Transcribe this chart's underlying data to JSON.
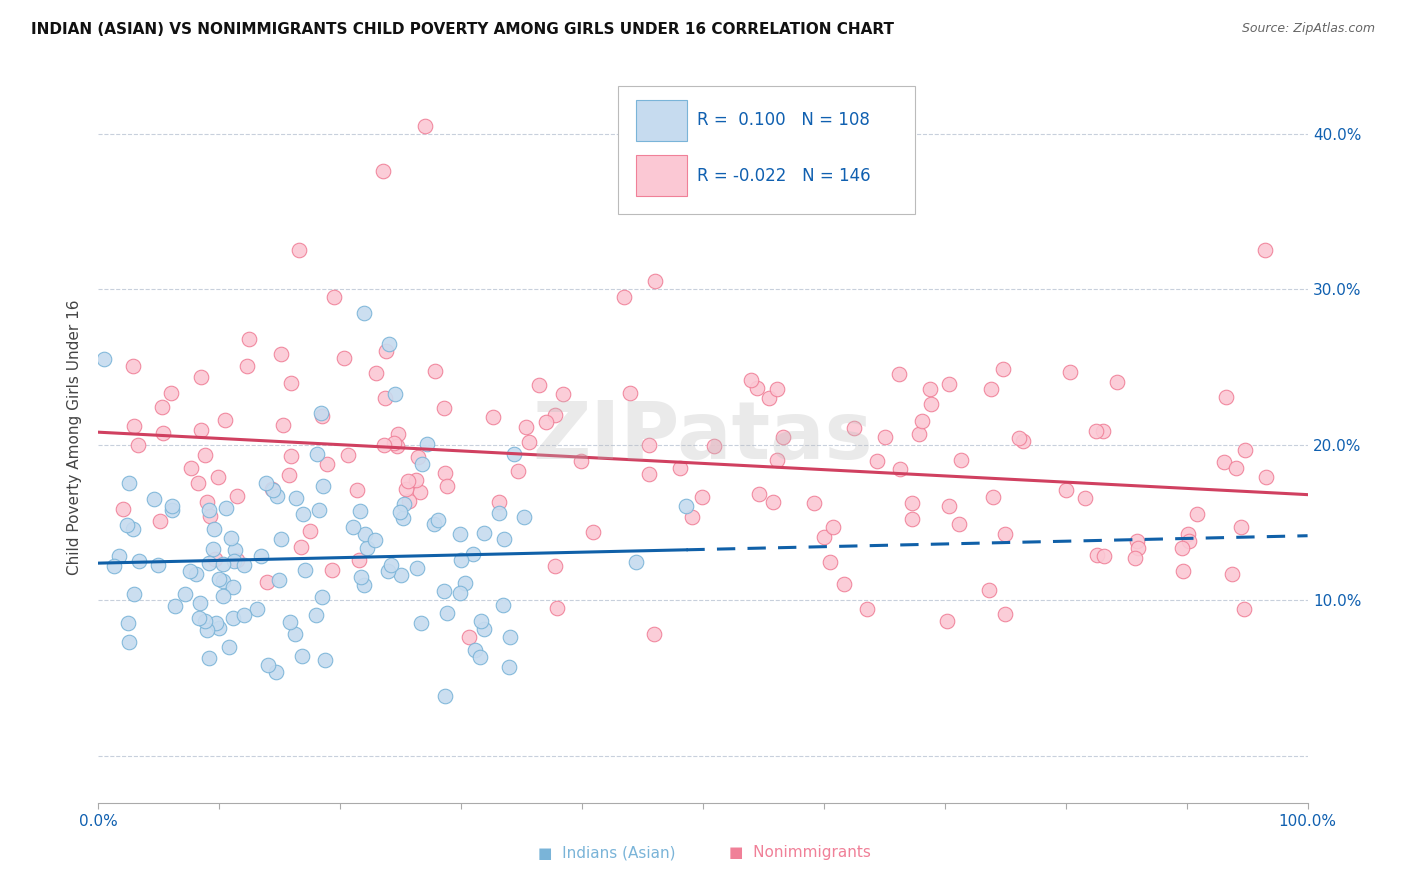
{
  "title": "INDIAN (ASIAN) VS NONIMMIGRANTS CHILD POVERTY AMONG GIRLS UNDER 16 CORRELATION CHART",
  "source": "Source: ZipAtlas.com",
  "ylabel": "Child Poverty Among Girls Under 16",
  "xlim": [
    0,
    1.0
  ],
  "ylim": [
    -0.03,
    0.44
  ],
  "x_ticks": [
    0.0,
    0.1,
    0.2,
    0.3,
    0.4,
    0.5,
    0.6,
    0.7,
    0.8,
    0.9,
    1.0
  ],
  "x_tick_labels": [
    "0.0%",
    "",
    "",
    "",
    "",
    "",
    "",
    "",
    "",
    "",
    "100.0%"
  ],
  "y_ticks": [
    0.0,
    0.1,
    0.2,
    0.3,
    0.4
  ],
  "y_tick_labels": [
    "",
    "10.0%",
    "20.0%",
    "30.0%",
    "40.0%"
  ],
  "blue_edge": "#7ab4d8",
  "blue_fill": "#c6dbef",
  "pink_edge": "#f08098",
  "pink_fill": "#fbc8d4",
  "trend_blue_color": "#1060a8",
  "trend_pink_color": "#d04060",
  "legend_R_blue": "0.100",
  "legend_N_blue": "108",
  "legend_R_pink": "-0.022",
  "legend_N_pink": "146",
  "watermark": "ZIPatas",
  "grid_color": "#c8d0dc",
  "blue_n": 108,
  "pink_n": 146
}
